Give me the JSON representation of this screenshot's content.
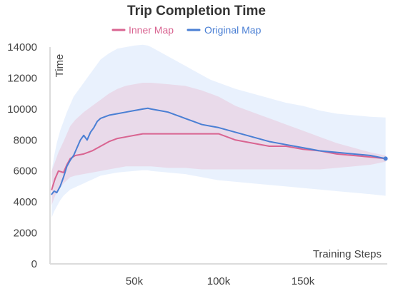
{
  "chart_data": {
    "type": "line",
    "title": "Trip Completion Time",
    "xlabel": "Training Steps",
    "ylabel": "Time",
    "xlim": [
      0,
      200000
    ],
    "ylim": [
      0,
      14000
    ],
    "x_ticks": [
      50000,
      100000,
      150000
    ],
    "x_tick_labels": [
      "50k",
      "100k",
      "150k"
    ],
    "y_ticks": [
      0,
      2000,
      4000,
      6000,
      8000,
      10000,
      12000,
      14000
    ],
    "y_tick_labels": [
      "0",
      "2000",
      "4000",
      "6000",
      "8000",
      "10000",
      "12000",
      "14000"
    ],
    "grid": false,
    "legend_position": "top-center",
    "series": [
      {
        "name": "Inner Map",
        "color": "#d96491",
        "band_color": "#e9bfd3",
        "x": [
          1000,
          3000,
          5000,
          8000,
          10000,
          12000,
          15000,
          20000,
          25000,
          30000,
          35000,
          40000,
          45000,
          50000,
          55000,
          60000,
          70000,
          80000,
          90000,
          95000,
          100000,
          105000,
          110000,
          120000,
          130000,
          140000,
          150000,
          160000,
          170000,
          180000,
          190000,
          199000
        ],
        "values": [
          4800,
          5500,
          6000,
          5900,
          6400,
          6800,
          7000,
          7100,
          7300,
          7600,
          7900,
          8100,
          8200,
          8300,
          8400,
          8400,
          8400,
          8400,
          8400,
          8400,
          8400,
          8200,
          8000,
          7800,
          7600,
          7600,
          7400,
          7300,
          7100,
          7000,
          6900,
          6800
        ],
        "band_upper": [
          6000,
          6600,
          7200,
          7900,
          8400,
          8900,
          9300,
          9800,
          10200,
          10600,
          11000,
          11300,
          11500,
          11600,
          11700,
          11700,
          11600,
          11500,
          11200,
          11000,
          10800,
          10500,
          10200,
          9800,
          9400,
          9000,
          8600,
          8200,
          7800,
          7500,
          7200,
          7000
        ],
        "band_lower": [
          3800,
          4400,
          4800,
          5200,
          5400,
          5600,
          5700,
          5800,
          5900,
          6000,
          6100,
          6200,
          6300,
          6300,
          6300,
          6300,
          6200,
          6200,
          6100,
          6100,
          6100,
          6100,
          6100,
          6100,
          6100,
          6100,
          6100,
          6100,
          6200,
          6300,
          6400,
          6600
        ]
      },
      {
        "name": "Original Map",
        "color": "#4a7fd4",
        "band_color": "#cfe1fb",
        "x": [
          1000,
          2500,
          4000,
          6000,
          8000,
          10000,
          12000,
          14000,
          16000,
          18000,
          20000,
          22000,
          24000,
          26000,
          28000,
          30000,
          35000,
          40000,
          45000,
          50000,
          55000,
          58000,
          60000,
          65000,
          70000,
          75000,
          80000,
          85000,
          90000,
          95000,
          100000,
          110000,
          120000,
          130000,
          140000,
          150000,
          160000,
          170000,
          180000,
          190000,
          199000
        ],
        "values": [
          4500,
          4700,
          4600,
          5000,
          5600,
          6300,
          6700,
          7000,
          7500,
          8000,
          8300,
          8000,
          8500,
          8800,
          9200,
          9400,
          9600,
          9700,
          9800,
          9900,
          10000,
          10050,
          10000,
          9900,
          9800,
          9600,
          9400,
          9200,
          9000,
          8900,
          8800,
          8500,
          8200,
          7900,
          7700,
          7500,
          7300,
          7200,
          7100,
          7000,
          6800
        ],
        "band_upper": [
          6000,
          7000,
          7800,
          8600,
          9200,
          9800,
          10300,
          10800,
          11100,
          11400,
          11700,
          12000,
          12300,
          12600,
          12900,
          13200,
          13600,
          13900,
          14000,
          14100,
          14150,
          14100,
          14000,
          13700,
          13400,
          13100,
          12800,
          12500,
          12200,
          11900,
          11700,
          11300,
          11000,
          10700,
          10400,
          10200,
          9900,
          9700,
          9600,
          9500,
          9450
        ],
        "band_lower": [
          3000,
          3400,
          3700,
          4100,
          4400,
          4600,
          4800,
          4900,
          5000,
          5100,
          5200,
          5300,
          5400,
          5500,
          5600,
          5700,
          5800,
          5900,
          5950,
          6000,
          6050,
          6050,
          6000,
          5950,
          5900,
          5850,
          5800,
          5700,
          5600,
          5500,
          5400,
          5300,
          5200,
          5100,
          5000,
          4900,
          4800,
          4700,
          4600,
          4500,
          4400
        ]
      }
    ]
  }
}
